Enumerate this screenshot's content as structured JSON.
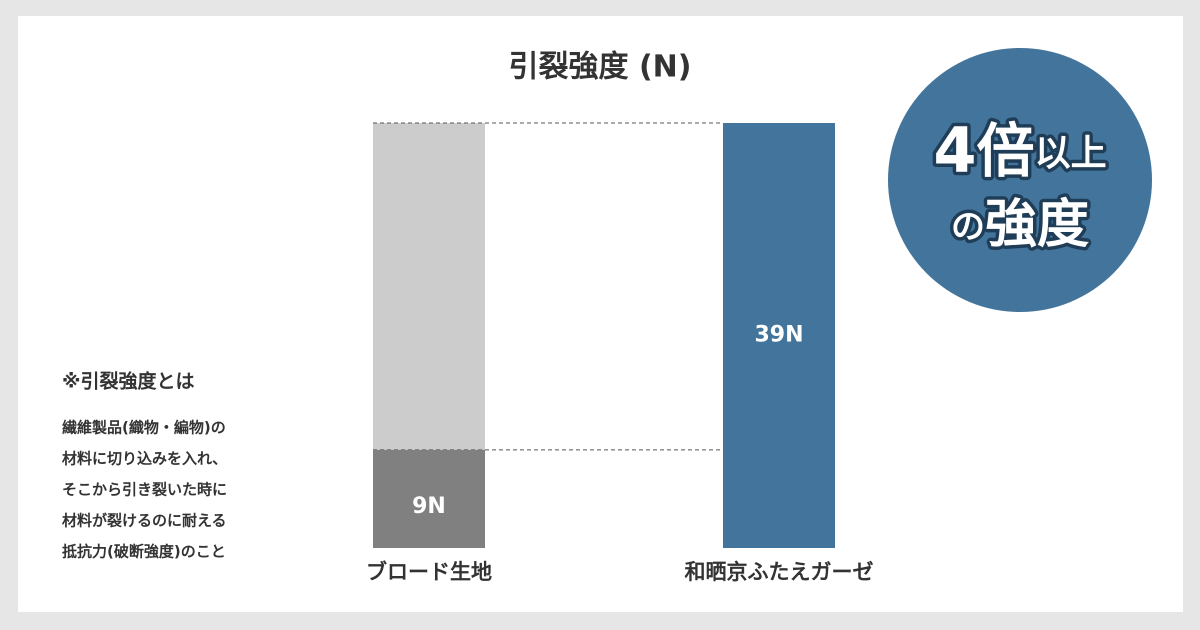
{
  "chart_data": {
    "type": "bar",
    "title": "引裂強度 (N)",
    "categories": [
      "ブロード生地",
      "和晒京ふたえガーゼ"
    ],
    "values": [
      9,
      39
    ],
    "value_labels": [
      "9N",
      "39N"
    ],
    "colors": [
      "#808080",
      "#43759c"
    ],
    "reference_color": "#cccccc"
  },
  "badge": {
    "number": "4",
    "times": "倍",
    "above": "以上",
    "of": "の",
    "strength": "強度"
  },
  "note": {
    "title": "※引裂強度とは",
    "lines": [
      "繊維製品(織物・編物)の",
      "材料に切り込みを入れ、",
      "そこから引き裂いた時に",
      "材料が裂けるのに耐える",
      "抵抗力(破断強度)のこと"
    ]
  }
}
